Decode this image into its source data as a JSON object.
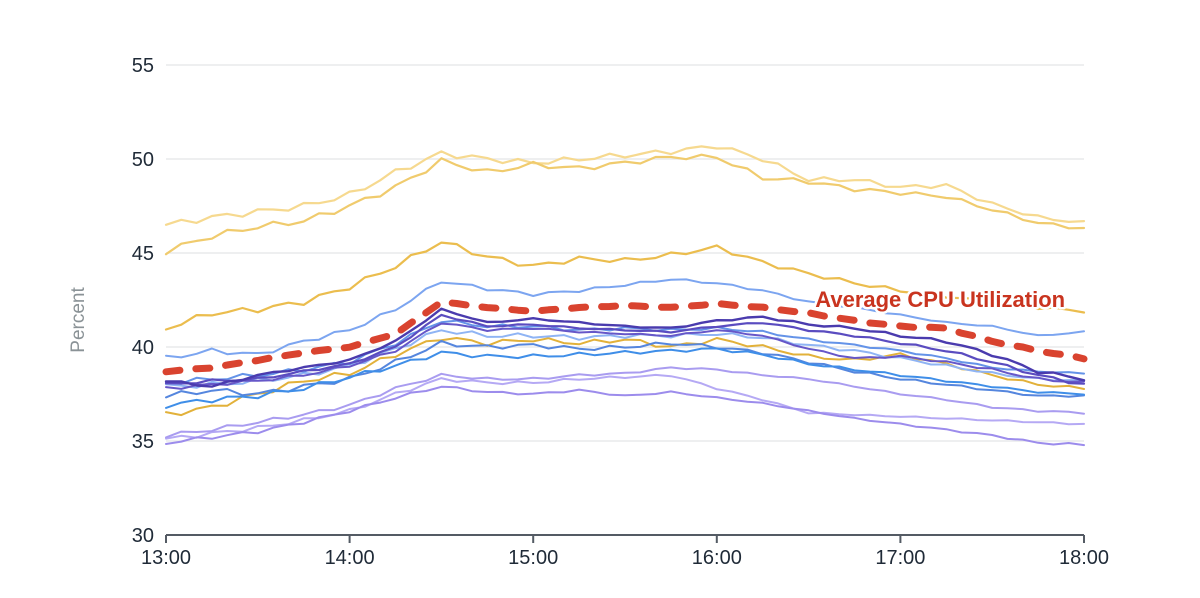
{
  "chart_data": {
    "type": "line",
    "title": "",
    "xlabel": "",
    "ylabel": "Percent",
    "ylim": [
      30,
      55
    ],
    "y_tick_labels": [
      "30",
      "35",
      "40",
      "45",
      "50",
      "55"
    ],
    "x_tick_labels": [
      "13:00",
      "14:00",
      "15:00",
      "16:00",
      "17:00",
      "18:00"
    ],
    "x_range_minutes": [
      0,
      300
    ],
    "sample_interval_minutes": 15,
    "grid": "horizontal",
    "legend_position": "none",
    "annotation": {
      "text": "Average CPU Utilization",
      "color": "#c9341f",
      "x_minutes": 253,
      "y_value": 42.55
    },
    "style": {
      "background": "#ffffff",
      "gridline_color": "#e9eaec",
      "axis_color": "#545b64",
      "tick_label_color": "#1f2a37",
      "axis_title_color": "#8a9296"
    },
    "series": [
      {
        "id": "s1",
        "color": "#f6d98f",
        "width": 2.2,
        "values": [
          46.5,
          46.9,
          47.2,
          47.5,
          48.1,
          49.3,
          50.3,
          50.0,
          49.8,
          50.0,
          50.2,
          50.4,
          50.7,
          50.0,
          48.9,
          48.9,
          48.5,
          48.6,
          47.6,
          46.9,
          46.6
        ]
      },
      {
        "id": "s2",
        "color": "#f0cb6d",
        "width": 2.2,
        "values": [
          45.1,
          45.9,
          46.4,
          46.7,
          47.5,
          48.5,
          49.9,
          49.3,
          49.7,
          49.5,
          49.8,
          50.1,
          50.1,
          49.0,
          48.8,
          48.4,
          48.2,
          48.0,
          47.3,
          46.6,
          46.3
        ]
      },
      {
        "id": "s3",
        "color": "#ebbd4e",
        "width": 2.2,
        "values": [
          41.0,
          41.8,
          42.0,
          42.4,
          43.2,
          44.3,
          45.6,
          44.8,
          44.3,
          44.7,
          44.6,
          44.9,
          45.3,
          44.5,
          43.9,
          43.4,
          43.0,
          42.7,
          42.4,
          42.1,
          41.9
        ]
      },
      {
        "id": "s4",
        "color": "#e2b13a",
        "width": 2,
        "values": [
          36.4,
          36.8,
          37.5,
          38.2,
          38.6,
          39.6,
          40.5,
          40.2,
          40.4,
          40.2,
          40.4,
          40.0,
          40.4,
          40.0,
          39.5,
          39.3,
          39.6,
          39.1,
          38.5,
          38.0,
          37.8
        ]
      },
      {
        "id": "s5",
        "color": "#8fb4f4",
        "width": 2,
        "values": [
          37.9,
          38.0,
          38.2,
          38.5,
          39.0,
          39.9,
          40.9,
          40.6,
          40.6,
          40.5,
          40.6,
          40.6,
          40.7,
          40.5,
          40.1,
          39.8,
          39.4,
          39.0,
          38.6,
          38.3,
          38.2
        ]
      },
      {
        "id": "s6",
        "color": "#5586de",
        "width": 2,
        "values": [
          37.4,
          37.7,
          37.5,
          37.9,
          38.3,
          39.2,
          40.2,
          40.0,
          40.1,
          39.9,
          40.0,
          40.2,
          40.0,
          39.7,
          39.2,
          38.7,
          38.3,
          38.0,
          37.7,
          37.4,
          37.4
        ]
      },
      {
        "id": "s7",
        "color": "#3f8ee8",
        "width": 2,
        "values": [
          36.9,
          37.2,
          37.4,
          37.8,
          38.4,
          39.0,
          39.7,
          39.5,
          39.5,
          39.6,
          39.7,
          39.8,
          39.9,
          39.6,
          39.1,
          38.8,
          38.5,
          38.2,
          37.9,
          37.6,
          37.5
        ]
      },
      {
        "id": "s8",
        "color": "#6493e8",
        "width": 2,
        "values": [
          38.1,
          38.3,
          38.5,
          38.8,
          39.2,
          40.2,
          41.4,
          41.1,
          41.1,
          40.9,
          41.0,
          40.9,
          41.0,
          40.8,
          40.4,
          40.1,
          39.8,
          39.4,
          38.9,
          38.7,
          38.6
        ]
      },
      {
        "id": "s9",
        "color": "#7ca5f0",
        "width": 2,
        "values": [
          39.4,
          39.8,
          39.6,
          40.3,
          40.9,
          42.0,
          43.5,
          43.1,
          42.8,
          43.0,
          43.3,
          43.6,
          43.4,
          43.0,
          42.4,
          42.1,
          41.7,
          41.3,
          41.1,
          40.6,
          40.8
        ]
      },
      {
        "id": "s10",
        "color": "#b5a9f4",
        "width": 2,
        "values": [
          35.1,
          35.4,
          35.7,
          36.1,
          36.6,
          37.5,
          38.3,
          38.1,
          38.1,
          38.3,
          38.4,
          38.5,
          37.8,
          37.2,
          36.5,
          36.4,
          36.3,
          36.2,
          36.1,
          36.0,
          35.9
        ]
      },
      {
        "id": "s11",
        "color": "#a99cf0",
        "width": 2,
        "values": [
          35.3,
          35.6,
          36.0,
          36.4,
          36.9,
          37.8,
          38.5,
          38.3,
          38.3,
          38.5,
          38.6,
          38.9,
          38.8,
          38.5,
          38.3,
          37.9,
          37.5,
          37.2,
          36.8,
          36.6,
          36.5
        ]
      },
      {
        "id": "s12",
        "color": "#9c8cec",
        "width": 2,
        "values": [
          34.9,
          35.2,
          35.5,
          36.0,
          36.6,
          37.3,
          37.9,
          37.6,
          37.5,
          37.7,
          37.4,
          37.6,
          37.3,
          37.0,
          36.6,
          36.2,
          35.9,
          35.6,
          35.3,
          34.9,
          34.8
        ]
      },
      {
        "id": "s13",
        "color": "#6657c8",
        "width": 2,
        "values": [
          37.8,
          38.0,
          38.2,
          38.5,
          39.0,
          39.8,
          41.3,
          40.9,
          41.0,
          40.8,
          40.7,
          40.6,
          40.9,
          40.6,
          39.9,
          39.4,
          39.5,
          39.2,
          38.8,
          38.3,
          38.1
        ]
      },
      {
        "id": "s14",
        "color": "#5a4cc0",
        "width": 2.2,
        "values": [
          38.0,
          38.2,
          38.3,
          38.7,
          39.1,
          40.0,
          41.7,
          41.1,
          41.2,
          41.0,
          40.9,
          40.8,
          41.1,
          41.3,
          40.9,
          40.6,
          40.2,
          39.8,
          39.2,
          38.5,
          38.0
        ]
      },
      {
        "id": "s15",
        "color": "#4a3bae",
        "width": 2.4,
        "values": [
          38.2,
          37.9,
          38.5,
          38.9,
          39.3,
          40.3,
          42.0,
          41.3,
          41.5,
          41.3,
          41.1,
          41.0,
          41.4,
          41.6,
          41.2,
          41.0,
          40.6,
          40.3,
          39.6,
          38.7,
          38.3
        ]
      },
      {
        "id": "average",
        "label": "Average CPU Utilization",
        "color": "#d9432f",
        "width": 7,
        "dash": [
          14,
          16
        ],
        "values": [
          38.7,
          38.9,
          39.3,
          39.7,
          40.0,
          40.7,
          42.4,
          42.1,
          41.9,
          42.1,
          42.2,
          42.1,
          42.3,
          42.1,
          41.8,
          41.4,
          41.1,
          41.0,
          40.3,
          39.8,
          39.4
        ]
      }
    ]
  }
}
